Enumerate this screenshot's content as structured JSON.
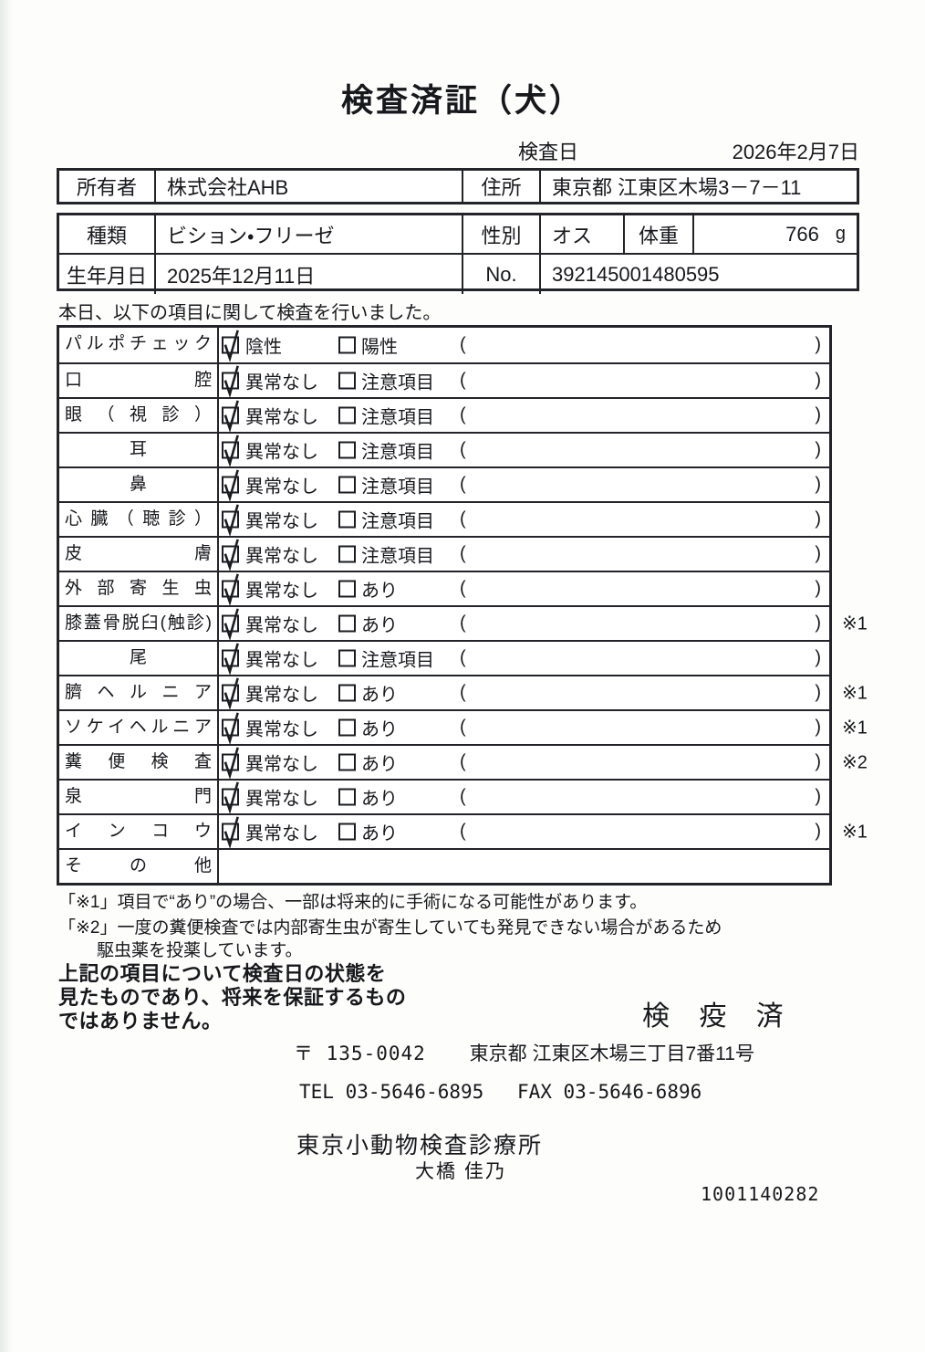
{
  "title": "検査済証（犬）",
  "inspection_date": {
    "label": "検査日",
    "value": "2026年2月7日"
  },
  "owner": {
    "label": "所有者",
    "name": "株式会社AHB",
    "address_label": "住所",
    "address": "東京都 江東区木場3－7－11"
  },
  "pet": {
    "breed_label": "種類",
    "breed": "ビション・フリーゼ",
    "sex_label": "性別",
    "sex": "オス",
    "weight_label": "体重",
    "weight": "766",
    "weight_unit": "g",
    "birth_label": "生年月日",
    "birth": "2025年12月11日",
    "no_label": "No.",
    "no": "392145001480595"
  },
  "statement": "本日、以下の項目に関して検査を行いました。",
  "checklist": {
    "paren_open": "(",
    "paren_close": ")",
    "items": [
      {
        "label": "パルポチェック",
        "opt1": "陰性",
        "opt2": "陽性",
        "checked": 1,
        "note": ""
      },
      {
        "label": "口腔",
        "opt1": "異常なし",
        "opt2": "注意項目",
        "checked": 1,
        "note": ""
      },
      {
        "label": "眼（視診）",
        "opt1": "異常なし",
        "opt2": "注意項目",
        "checked": 1,
        "note": ""
      },
      {
        "label": "耳",
        "opt1": "異常なし",
        "opt2": "注意項目",
        "checked": 1,
        "note": ""
      },
      {
        "label": "鼻",
        "opt1": "異常なし",
        "opt2": "注意項目",
        "checked": 1,
        "note": ""
      },
      {
        "label": "心臓（聴診）",
        "opt1": "異常なし",
        "opt2": "注意項目",
        "checked": 1,
        "note": ""
      },
      {
        "label": "皮膚",
        "opt1": "異常なし",
        "opt2": "注意項目",
        "checked": 1,
        "note": ""
      },
      {
        "label": "外部寄生虫",
        "opt1": "異常なし",
        "opt2": "あり",
        "checked": 1,
        "note": ""
      },
      {
        "label": "膝蓋骨脱臼(触診)",
        "opt1": "異常なし",
        "opt2": "あり",
        "checked": 1,
        "note": "※1"
      },
      {
        "label": "尾",
        "opt1": "異常なし",
        "opt2": "注意項目",
        "checked": 1,
        "note": ""
      },
      {
        "label": "臍ヘルニア",
        "opt1": "異常なし",
        "opt2": "あり",
        "checked": 1,
        "note": "※1"
      },
      {
        "label": "ソケイヘルニア",
        "opt1": "異常なし",
        "opt2": "あり",
        "checked": 1,
        "note": "※1"
      },
      {
        "label": "糞便検査",
        "opt1": "異常なし",
        "opt2": "あり",
        "checked": 1,
        "note": "※2"
      },
      {
        "label": "泉門",
        "opt1": "異常なし",
        "opt2": "あり",
        "checked": 1,
        "note": ""
      },
      {
        "label": "インコウ",
        "opt1": "異常なし",
        "opt2": "あり",
        "checked": 1,
        "note": "※1"
      },
      {
        "label": "その他",
        "opt1": null,
        "opt2": null,
        "checked": 0,
        "note": ""
      }
    ]
  },
  "footnotes": {
    "line1": "「※1」項目で“あり”の場合、一部は将来的に手術になる可能性があります。",
    "line2": "「※2」一度の糞便検査では内部寄生虫が寄生していても発見できない場合があるため",
    "line2b": "駆虫薬を投薬しています。"
  },
  "disclaimer": {
    "line1": "上記の項目について検査日の状態を",
    "line2": "見たものであり、将来を保証するもの",
    "line3": "ではありません。"
  },
  "stamp": "検 疫 済",
  "clinic": {
    "postal_code": "〒 135-0042",
    "address": "東京都 江東区木場三丁目7番11号",
    "tel": "TEL 03-5646-6895",
    "fax": "FAX 03-5646-6896",
    "name": "東京小動物検査診療所",
    "signer": "大橋  佳乃",
    "serial": "1001140282"
  }
}
